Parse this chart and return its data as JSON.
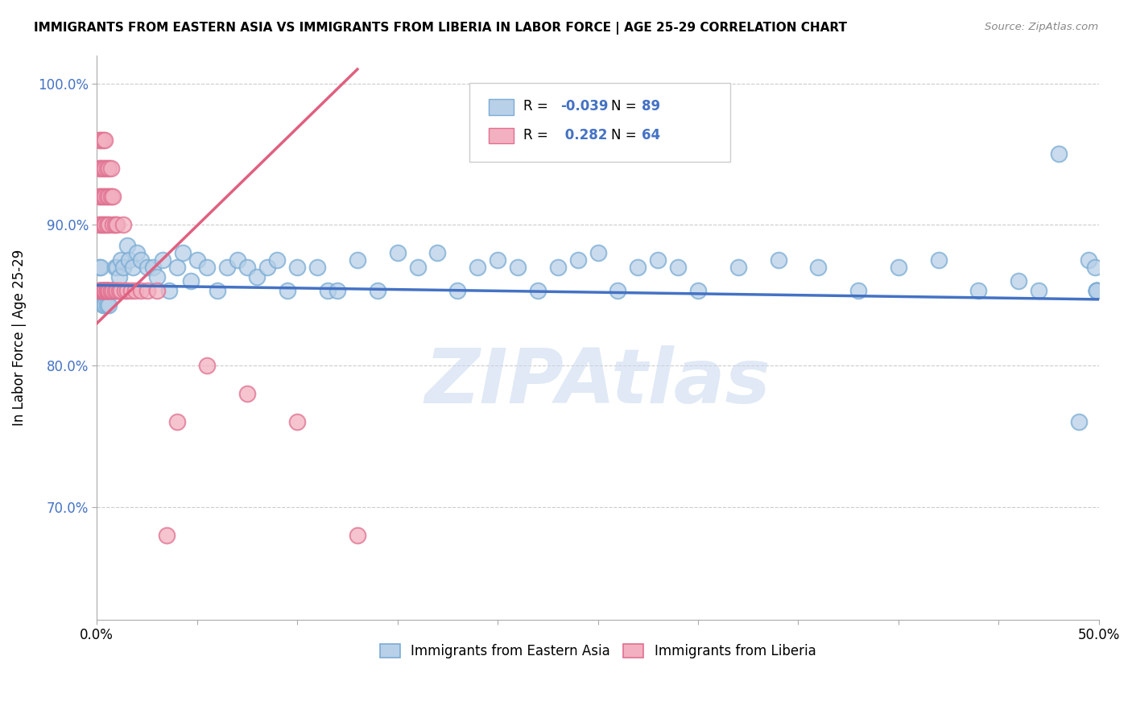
{
  "title": "IMMIGRANTS FROM EASTERN ASIA VS IMMIGRANTS FROM LIBERIA IN LABOR FORCE | AGE 25-29 CORRELATION CHART",
  "source": "Source: ZipAtlas.com",
  "ylabel": "In Labor Force | Age 25-29",
  "xlim": [
    0.0,
    0.5
  ],
  "ylim": [
    0.62,
    1.02
  ],
  "xticks": [
    0.0,
    0.05,
    0.1,
    0.15,
    0.2,
    0.25,
    0.3,
    0.35,
    0.4,
    0.45,
    0.5
  ],
  "yticks": [
    0.7,
    0.8,
    0.9,
    1.0
  ],
  "ytick_labels": [
    "70.0%",
    "80.0%",
    "90.0%",
    "100.0%"
  ],
  "blue_R": -0.039,
  "blue_N": 89,
  "pink_R": 0.282,
  "pink_N": 64,
  "blue_color": "#b8d0e8",
  "pink_color": "#f2b0c0",
  "blue_edge": "#7aacd4",
  "pink_edge": "#e07090",
  "blue_line_color": "#4472c4",
  "pink_line_color": "#e06080",
  "legend_label_blue": "Immigrants from Eastern Asia",
  "legend_label_pink": "Immigrants from Liberia",
  "watermark": "ZIPAtlas",
  "blue_x": [
    0.001,
    0.001,
    0.001,
    0.002,
    0.002,
    0.002,
    0.003,
    0.003,
    0.003,
    0.004,
    0.004,
    0.005,
    0.005,
    0.005,
    0.006,
    0.006,
    0.007,
    0.007,
    0.008,
    0.008,
    0.009,
    0.01,
    0.01,
    0.011,
    0.012,
    0.013,
    0.015,
    0.016,
    0.018,
    0.02,
    0.022,
    0.025,
    0.028,
    0.03,
    0.033,
    0.036,
    0.04,
    0.043,
    0.047,
    0.05,
    0.055,
    0.06,
    0.065,
    0.07,
    0.075,
    0.08,
    0.085,
    0.09,
    0.095,
    0.1,
    0.11,
    0.115,
    0.12,
    0.13,
    0.14,
    0.15,
    0.16,
    0.17,
    0.18,
    0.19,
    0.2,
    0.21,
    0.22,
    0.23,
    0.24,
    0.25,
    0.26,
    0.27,
    0.28,
    0.29,
    0.3,
    0.32,
    0.34,
    0.36,
    0.38,
    0.4,
    0.42,
    0.44,
    0.46,
    0.47,
    0.48,
    0.49,
    0.495,
    0.498,
    0.499,
    0.499,
    0.499,
    0.499,
    0.499
  ],
  "blue_y": [
    0.87,
    0.853,
    0.853,
    0.87,
    0.853,
    0.853,
    0.853,
    0.843,
    0.853,
    0.853,
    0.843,
    0.853,
    0.843,
    0.853,
    0.853,
    0.843,
    0.853,
    0.853,
    0.853,
    0.853,
    0.87,
    0.87,
    0.853,
    0.863,
    0.875,
    0.87,
    0.885,
    0.875,
    0.87,
    0.88,
    0.875,
    0.87,
    0.87,
    0.863,
    0.875,
    0.853,
    0.87,
    0.88,
    0.86,
    0.875,
    0.87,
    0.853,
    0.87,
    0.875,
    0.87,
    0.863,
    0.87,
    0.875,
    0.853,
    0.87,
    0.87,
    0.853,
    0.853,
    0.875,
    0.853,
    0.88,
    0.87,
    0.88,
    0.853,
    0.87,
    0.875,
    0.87,
    0.853,
    0.87,
    0.875,
    0.88,
    0.853,
    0.87,
    0.875,
    0.87,
    0.853,
    0.87,
    0.875,
    0.87,
    0.853,
    0.87,
    0.875,
    0.853,
    0.86,
    0.853,
    0.95,
    0.76,
    0.875,
    0.87,
    0.853,
    0.853,
    0.853,
    0.853,
    0.853
  ],
  "pink_x": [
    0.001,
    0.001,
    0.001,
    0.001,
    0.001,
    0.002,
    0.002,
    0.002,
    0.002,
    0.002,
    0.002,
    0.003,
    0.003,
    0.003,
    0.003,
    0.003,
    0.003,
    0.003,
    0.004,
    0.004,
    0.004,
    0.004,
    0.004,
    0.004,
    0.004,
    0.005,
    0.005,
    0.005,
    0.005,
    0.005,
    0.005,
    0.005,
    0.006,
    0.006,
    0.006,
    0.006,
    0.006,
    0.007,
    0.007,
    0.007,
    0.007,
    0.008,
    0.008,
    0.008,
    0.009,
    0.009,
    0.01,
    0.01,
    0.011,
    0.012,
    0.013,
    0.014,
    0.015,
    0.017,
    0.019,
    0.022,
    0.025,
    0.03,
    0.035,
    0.04,
    0.055,
    0.075,
    0.1,
    0.13
  ],
  "pink_y": [
    0.853,
    0.96,
    0.94,
    0.92,
    0.9,
    0.853,
    0.96,
    0.94,
    0.92,
    0.9,
    0.853,
    0.853,
    0.96,
    0.94,
    0.92,
    0.9,
    0.853,
    0.853,
    0.853,
    0.96,
    0.94,
    0.92,
    0.9,
    0.853,
    0.853,
    0.853,
    0.94,
    0.92,
    0.9,
    0.853,
    0.853,
    0.853,
    0.853,
    0.94,
    0.92,
    0.9,
    0.853,
    0.853,
    0.94,
    0.92,
    0.853,
    0.853,
    0.92,
    0.9,
    0.853,
    0.9,
    0.853,
    0.9,
    0.853,
    0.853,
    0.9,
    0.853,
    0.853,
    0.853,
    0.853,
    0.853,
    0.853,
    0.853,
    0.68,
    0.76,
    0.8,
    0.78,
    0.76,
    0.68
  ]
}
